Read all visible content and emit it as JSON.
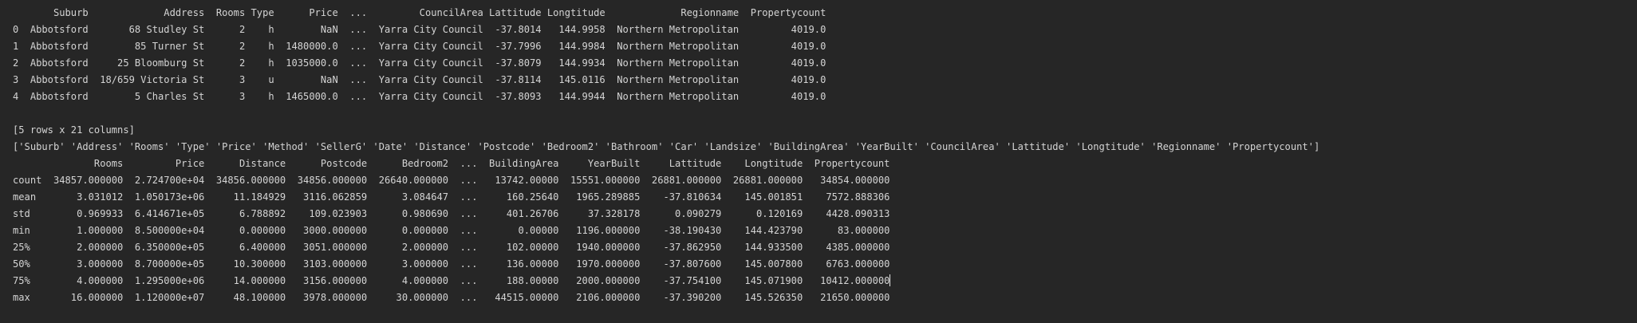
{
  "output": {
    "head_table": {
      "header": "       Suburb             Address  Rooms Type      Price  ...         CouncilArea Lattitude Longtitude             Regionname  Propertycount",
      "rows": [
        "0  Abbotsford       68 Studley St      2    h        NaN  ...  Yarra City Council  -37.8014   144.9958  Northern Metropolitan         4019.0",
        "1  Abbotsford        85 Turner St      2    h  1480000.0  ...  Yarra City Council  -37.7996   144.9984  Northern Metropolitan         4019.0",
        "2  Abbotsford     25 Bloomburg St      2    h  1035000.0  ...  Yarra City Council  -37.8079   144.9934  Northern Metropolitan         4019.0",
        "3  Abbotsford  18/659 Victoria St      3    u        NaN  ...  Yarra City Council  -37.8114   145.0116  Northern Metropolitan         4019.0",
        "4  Abbotsford        5 Charles St      3    h  1465000.0  ...  Yarra City Council  -37.8093   144.9944  Northern Metropolitan         4019.0"
      ]
    },
    "shape_note": "[5 rows x 21 columns]",
    "columns_list": "['Suburb' 'Address' 'Rooms' 'Type' 'Price' 'Method' 'SellerG' 'Date' 'Distance' 'Postcode' 'Bedroom2' 'Bathroom' 'Car' 'Landsize' 'BuildingArea' 'YearBuilt' 'CouncilArea' 'Lattitude' 'Longtitude' 'Regionname' 'Propertycount']",
    "describe_table": {
      "header": "              Rooms         Price      Distance      Postcode      Bedroom2  ...  BuildingArea     YearBuilt     Lattitude    Longtitude  Propertycount",
      "rows": [
        "count  34857.000000  2.724700e+04  34856.000000  34856.000000  26640.000000  ...   13742.00000  15551.000000  26881.000000  26881.000000   34854.000000",
        "mean       3.031012  1.050173e+06     11.184929   3116.062859      3.084647  ...     160.25640   1965.289885    -37.810634    145.001851    7572.888306",
        "std        0.969933  6.414671e+05      6.788892    109.023903      0.980690  ...     401.26706     37.328178      0.090279      0.120169    4428.090313",
        "min        1.000000  8.500000e+04      0.000000   3000.000000      0.000000  ...       0.00000   1196.000000    -38.190430    144.423790      83.000000",
        "25%        2.000000  6.350000e+05      6.400000   3051.000000      2.000000  ...     102.00000   1940.000000    -37.862950    144.933500    4385.000000",
        "50%        3.000000  8.700000e+05     10.300000   3103.000000      3.000000  ...     136.00000   1970.000000    -37.807600    145.007800    6763.000000",
        "75%        4.000000  1.295000e+06     14.000000   3156.000000      4.000000  ...     188.00000   2000.000000    -37.754100    145.071900   10412.000000",
        "max       16.000000  1.120000e+07     48.100000   3978.000000     30.000000  ...   44515.00000   2106.000000    -37.390200    145.526350   21650.000000"
      ]
    }
  },
  "colors": {
    "background": "#262626",
    "text": "#d4d4d4"
  }
}
